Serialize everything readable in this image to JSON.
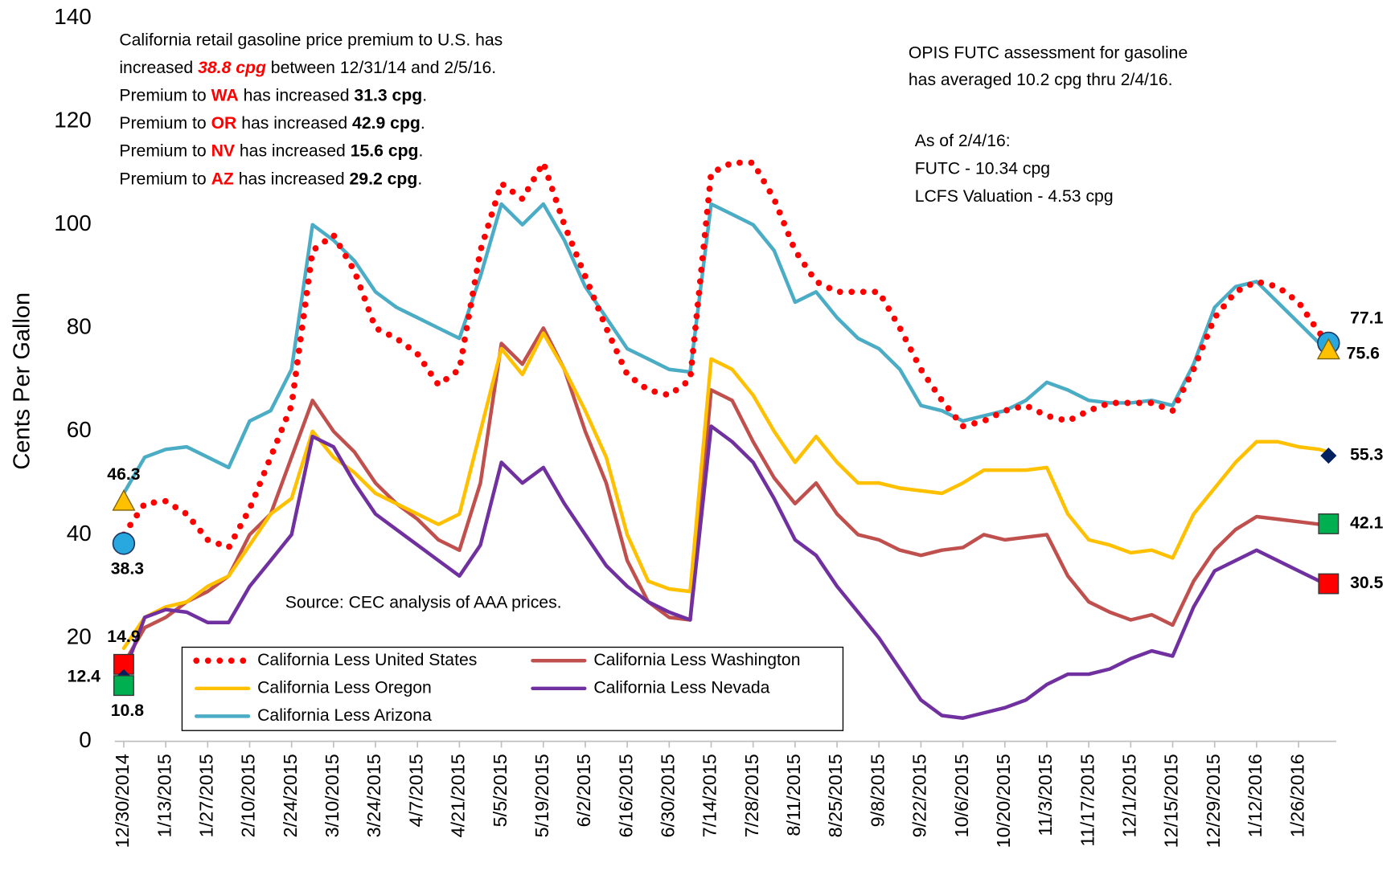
{
  "chart_data": {
    "type": "line",
    "y_label": "Cents Per Gallon",
    "ylim": [
      0,
      140
    ],
    "yticks": [
      0,
      20,
      40,
      60,
      80,
      100,
      120,
      140
    ],
    "x": [
      "12/30/2014",
      "1/6/2015",
      "1/13/2015",
      "1/20/2015",
      "1/27/2015",
      "2/3/2015",
      "2/10/2015",
      "2/17/2015",
      "2/24/2015",
      "3/3/2015",
      "3/10/2015",
      "3/17/2015",
      "3/24/2015",
      "3/31/2015",
      "4/7/2015",
      "4/14/2015",
      "4/21/2015",
      "4/28/2015",
      "5/5/2015",
      "5/12/2015",
      "5/19/2015",
      "5/26/2015",
      "6/2/2015",
      "6/9/2015",
      "6/16/2015",
      "6/23/2015",
      "6/30/2015",
      "7/7/2015",
      "7/14/2015",
      "7/21/2015",
      "7/28/2015",
      "8/4/2015",
      "8/11/2015",
      "8/18/2015",
      "8/25/2015",
      "9/1/2015",
      "9/8/2015",
      "9/15/2015",
      "9/22/2015",
      "9/29/2015",
      "10/6/2015",
      "10/13/2015",
      "10/20/2015",
      "10/27/2015",
      "11/3/2015",
      "11/10/2015",
      "11/17/2015",
      "11/24/2015",
      "12/1/2015",
      "12/8/2015",
      "12/15/2015",
      "12/22/2015",
      "12/29/2015",
      "1/5/2016",
      "1/12/2016",
      "1/19/2016",
      "1/26/2016",
      "2/2/2016",
      "2/5/2016"
    ],
    "xticks": [
      "12/30/2014",
      "1/13/2015",
      "1/27/2015",
      "2/10/2015",
      "2/24/2015",
      "3/10/2015",
      "3/24/2015",
      "4/7/2015",
      "4/21/2015",
      "5/5/2015",
      "5/19/2015",
      "6/2/2015",
      "6/16/2015",
      "6/30/2015",
      "7/14/2015",
      "7/28/2015",
      "8/11/2015",
      "8/25/2015",
      "9/8/2015",
      "9/22/2015",
      "10/6/2015",
      "10/20/2015",
      "11/3/2015",
      "11/17/2015",
      "12/1/2015",
      "12/15/2015",
      "12/29/2015",
      "1/12/2016",
      "1/26/2016"
    ],
    "series": [
      {
        "name": "California Less United States",
        "color": "#ff0000",
        "dash": "dotted",
        "values": [
          40,
          46,
          46.5,
          44,
          39,
          37.5,
          45,
          55,
          65,
          95,
          98,
          91,
          80,
          78,
          75,
          69,
          72,
          95,
          108,
          105,
          112,
          100,
          90,
          80,
          71,
          68,
          67,
          70,
          110,
          112,
          112,
          105,
          95,
          89,
          87,
          87,
          87,
          80,
          72,
          66,
          61,
          62,
          64,
          65,
          63,
          62,
          64,
          65.5,
          65.5,
          65.5,
          64,
          72,
          82,
          87,
          89,
          88,
          85,
          79,
          77.8
        ]
      },
      {
        "name": "California Less Washington",
        "color": "#c0504d",
        "values": [
          15,
          22,
          24,
          27,
          29,
          32,
          40,
          44,
          55,
          66,
          60,
          56,
          50,
          46,
          43,
          39,
          37,
          50,
          77,
          73,
          80,
          72,
          60,
          50,
          35,
          27,
          24,
          23.5,
          68,
          66,
          58,
          51,
          46,
          50,
          44,
          40,
          39,
          37,
          36,
          37,
          37.5,
          40,
          39,
          39.5,
          40,
          32,
          27,
          25,
          23.5,
          24.5,
          22.5,
          31,
          37,
          41,
          43.5,
          43,
          42.5,
          42,
          42
        ]
      },
      {
        "name": "California Less Oregon",
        "color": "#ffc000",
        "values": [
          18,
          24,
          26,
          27,
          30,
          32,
          38,
          44,
          47,
          60,
          55,
          52,
          48,
          46,
          44,
          42,
          44,
          60,
          76,
          71,
          79,
          72,
          64,
          55,
          40,
          31,
          29.5,
          29,
          74,
          72,
          67,
          60,
          54,
          59,
          54,
          50,
          50,
          49,
          48.5,
          48,
          50,
          52.5,
          52.5,
          52.5,
          53,
          44,
          39,
          38,
          36.5,
          37,
          35.5,
          44,
          49,
          54,
          58,
          58,
          57,
          56.5,
          56
        ]
      },
      {
        "name": "California Less Nevada",
        "color": "#7030a0",
        "values": [
          13,
          24,
          25.5,
          25,
          23,
          23,
          30,
          35,
          40,
          59,
          57,
          50,
          44,
          41,
          38,
          35,
          32,
          38,
          54,
          50,
          53,
          46,
          40,
          34,
          30,
          27,
          25,
          23.5,
          61,
          58,
          54,
          47,
          39,
          36,
          30,
          25,
          20,
          14,
          8,
          5,
          4.5,
          5.5,
          6.5,
          8,
          11,
          13,
          13,
          14,
          16,
          17.5,
          16.5,
          26,
          33,
          35,
          37,
          35,
          33,
          31,
          30.5
        ]
      },
      {
        "name": "California Less Arizona",
        "color": "#4bacc6",
        "values": [
          48,
          55,
          56.5,
          57,
          55,
          53,
          62,
          64,
          72,
          100,
          97,
          93,
          87,
          84,
          82,
          80,
          78,
          90,
          104,
          100,
          104,
          97,
          88,
          82,
          76,
          74,
          72,
          71.5,
          104,
          102,
          100,
          95,
          85,
          87,
          82,
          78,
          76,
          72,
          65,
          64,
          62,
          63,
          64,
          66,
          69.5,
          68,
          66,
          65.5,
          65.5,
          66,
          65,
          73,
          84,
          88,
          89,
          85,
          81,
          77,
          77
        ]
      }
    ],
    "legend": "bottom-left",
    "markers": [
      {
        "date": "12/30/2014",
        "value": 46.3,
        "shape": "triangle",
        "color": "#ffc000",
        "label_position": "above"
      },
      {
        "date": "12/30/2014",
        "value": 38.3,
        "shape": "circle",
        "color": "#29a8e0",
        "label_position": "below"
      },
      {
        "date": "12/30/2014",
        "value": 14.9,
        "shape": "square",
        "color": "#ff0000",
        "label_position": "above"
      },
      {
        "date": "12/30/2014",
        "value": 12.4,
        "shape": "diamond",
        "color": "#002060",
        "label_position": "left"
      },
      {
        "date": "12/30/2014",
        "value": 10.8,
        "shape": "square",
        "color": "#00b050",
        "label_position": "below"
      },
      {
        "date": "2/5/2016",
        "value": 77.1,
        "shape": "circle",
        "color": "#29a8e0",
        "label_position": "above-right"
      },
      {
        "date": "2/5/2016",
        "value": 75.6,
        "shape": "triangle",
        "color": "#ffc000",
        "label_position": "below-right"
      },
      {
        "date": "2/5/2016",
        "value": 55.3,
        "shape": "diamond",
        "color": "#002060",
        "label_position": "right"
      },
      {
        "date": "2/5/2016",
        "value": 42.1,
        "shape": "square",
        "color": "#00b050",
        "label_position": "right"
      },
      {
        "date": "2/5/2016",
        "value": 30.5,
        "shape": "square",
        "color": "#ff0000",
        "label_position": "right"
      }
    ],
    "notes_left": [
      [
        {
          "text": "California retail gasoline price premium to U.S. has"
        }
      ],
      [
        {
          "text": "increased "
        },
        {
          "text": "38.8 cpg",
          "style": "red-bold-italic"
        },
        {
          "text": " between 12/31/14 and 2/5/16."
        }
      ],
      [
        {
          "text": "Premium to "
        },
        {
          "text": "WA",
          "style": "red-bold"
        },
        {
          "text": " has increased "
        },
        {
          "text": "31.3 cpg",
          "style": "bold"
        },
        {
          "text": "."
        }
      ],
      [
        {
          "text": "Premium to "
        },
        {
          "text": "OR",
          "style": "red-bold"
        },
        {
          "text": " has increased "
        },
        {
          "text": "42.9 cpg",
          "style": "bold"
        },
        {
          "text": "."
        }
      ],
      [
        {
          "text": "Premium to "
        },
        {
          "text": "NV",
          "style": "red-bold"
        },
        {
          "text": " has increased "
        },
        {
          "text": "15.6 cpg",
          "style": "bold"
        },
        {
          "text": "."
        }
      ],
      [
        {
          "text": "Premium to "
        },
        {
          "text": "AZ",
          "style": "red-bold"
        },
        {
          "text": " has increased "
        },
        {
          "text": "29.2 cpg",
          "style": "bold"
        },
        {
          "text": "."
        }
      ]
    ],
    "notes_right": [
      "OPIS FUTC assessment for gasoline",
      "has averaged 10.2 cpg thru 2/4/16."
    ],
    "notes_right_2": [
      "As of 2/4/16:",
      "FUTC - 10.34 cpg",
      "LCFS Valuation - 4.53 cpg"
    ],
    "source": "Source: CEC analysis of AAA prices."
  }
}
